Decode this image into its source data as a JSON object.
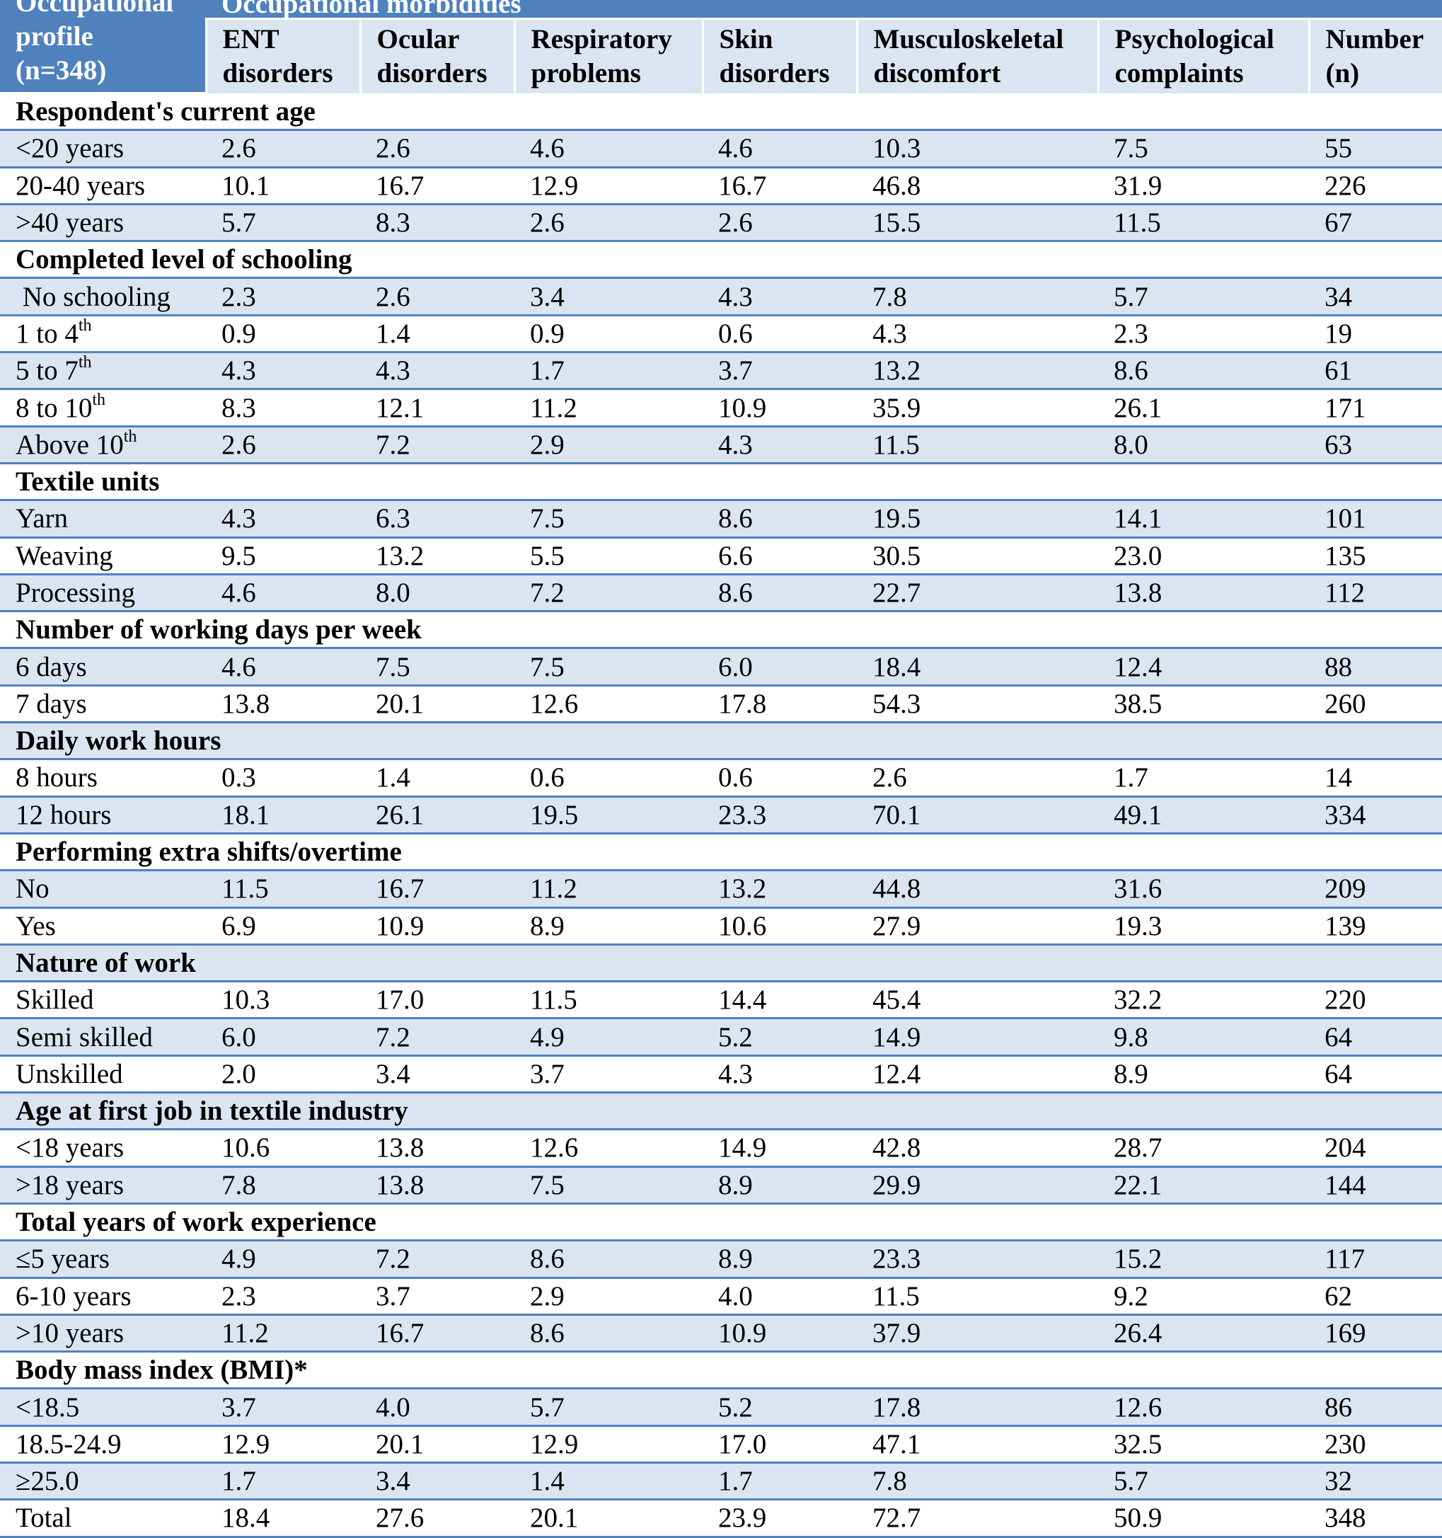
{
  "header": {
    "profile_lines": [
      "Occupational",
      "profile",
      "(n=348)"
    ],
    "group_label": "Occupational morbidities",
    "columns": [
      {
        "l1": "ENT",
        "l2": "disorders"
      },
      {
        "l1": "Ocular",
        "l2": "disorders"
      },
      {
        "l1": "Respiratory",
        "l2": "problems"
      },
      {
        "l1": "Skin",
        "l2": "disorders"
      },
      {
        "l1": "Musculoskeletal",
        "l2": "discomfort"
      },
      {
        "l1": "Psychological",
        "l2": "complaints"
      },
      {
        "l1": "Number",
        "l2": "(n)"
      }
    ]
  },
  "rows": [
    {
      "type": "section",
      "label": "Respondent's current age"
    },
    {
      "type": "data",
      "label": "<20 years",
      "values": [
        "2.6",
        "2.6",
        "4.6",
        "4.6",
        "10.3",
        "7.5",
        "55"
      ]
    },
    {
      "type": "data",
      "label": "20-40 years",
      "values": [
        "10.1",
        "16.7",
        "12.9",
        "16.7",
        "46.8",
        "31.9",
        "226"
      ]
    },
    {
      "type": "data",
      "label": ">40 years",
      "values": [
        "5.7",
        "8.3",
        "2.6",
        "2.6",
        "15.5",
        "11.5",
        "67"
      ]
    },
    {
      "type": "section",
      "label": "Completed level of schooling"
    },
    {
      "type": "data",
      "label": " No schooling",
      "values": [
        "2.3",
        "2.6",
        "3.4",
        "4.3",
        "7.8",
        "5.7",
        "34"
      ]
    },
    {
      "type": "data",
      "label": "1 to 4",
      "sup": "th",
      "values": [
        "0.9",
        "1.4",
        "0.9",
        "0.6",
        "4.3",
        "2.3",
        "19"
      ]
    },
    {
      "type": "data",
      "label": "5 to 7",
      "sup": "th",
      "values": [
        "4.3",
        "4.3",
        "1.7",
        "3.7",
        "13.2",
        "8.6",
        "61"
      ]
    },
    {
      "type": "data",
      "label": "8 to 10",
      "sup": "th",
      "values": [
        "8.3",
        "12.1",
        "11.2",
        "10.9",
        "35.9",
        "26.1",
        "171"
      ]
    },
    {
      "type": "data",
      "label": "Above 10",
      "sup": "th",
      "values": [
        "2.6",
        "7.2",
        "2.9",
        "4.3",
        "11.5",
        "8.0",
        "63"
      ]
    },
    {
      "type": "section",
      "label": "Textile units"
    },
    {
      "type": "data",
      "label": "Yarn",
      "values": [
        "4.3",
        "6.3",
        "7.5",
        "8.6",
        "19.5",
        "14.1",
        "101"
      ]
    },
    {
      "type": "data",
      "label": "Weaving",
      "values": [
        "9.5",
        "13.2",
        "5.5",
        "6.6",
        "30.5",
        "23.0",
        "135"
      ]
    },
    {
      "type": "data",
      "label": "Processing",
      "values": [
        "4.6",
        "8.0",
        "7.2",
        "8.6",
        "22.7",
        "13.8",
        "112"
      ]
    },
    {
      "type": "section",
      "label": "Number of working days per week"
    },
    {
      "type": "data",
      "label": "6 days",
      "values": [
        "4.6",
        "7.5",
        "7.5",
        "6.0",
        "18.4",
        "12.4",
        "88"
      ]
    },
    {
      "type": "data",
      "label": "7 days",
      "values": [
        "13.8",
        "20.1",
        "12.6",
        "17.8",
        "54.3",
        "38.5",
        "260"
      ]
    },
    {
      "type": "section",
      "label": "Daily work hours"
    },
    {
      "type": "data",
      "label": "8 hours",
      "values": [
        "0.3",
        "1.4",
        "0.6",
        "0.6",
        "2.6",
        "1.7",
        "14"
      ]
    },
    {
      "type": "data",
      "label": "12 hours",
      "values": [
        "18.1",
        "26.1",
        "19.5",
        "23.3",
        "70.1",
        "49.1",
        "334"
      ]
    },
    {
      "type": "section",
      "label": "Performing extra shifts/overtime"
    },
    {
      "type": "data",
      "label": "No",
      "values": [
        "11.5",
        "16.7",
        "11.2",
        "13.2",
        "44.8",
        "31.6",
        "209"
      ]
    },
    {
      "type": "data",
      "label": "Yes",
      "values": [
        "6.9",
        "10.9",
        "8.9",
        "10.6",
        "27.9",
        "19.3",
        "139"
      ]
    },
    {
      "type": "section",
      "label": "Nature of work"
    },
    {
      "type": "data",
      "label": "Skilled",
      "values": [
        "10.3",
        "17.0",
        "11.5",
        "14.4",
        "45.4",
        "32.2",
        "220"
      ]
    },
    {
      "type": "data",
      "label": "Semi skilled",
      "values": [
        "6.0",
        "7.2",
        "4.9",
        "5.2",
        "14.9",
        "9.8",
        "64"
      ]
    },
    {
      "type": "data",
      "label": "Unskilled",
      "values": [
        "2.0",
        "3.4",
        "3.7",
        "4.3",
        "12.4",
        "8.9",
        "64"
      ]
    },
    {
      "type": "section",
      "label": "Age at first job in textile industry"
    },
    {
      "type": "data",
      "label": "<18 years",
      "values": [
        "10.6",
        "13.8",
        "12.6",
        "14.9",
        "42.8",
        "28.7",
        "204"
      ]
    },
    {
      "type": "data",
      "label": ">18 years",
      "values": [
        "7.8",
        "13.8",
        "7.5",
        "8.9",
        "29.9",
        "22.1",
        "144"
      ]
    },
    {
      "type": "section",
      "label": "Total years of work experience"
    },
    {
      "type": "data",
      "label": "≤5 years",
      "values": [
        "4.9",
        "7.2",
        "8.6",
        "8.9",
        "23.3",
        "15.2",
        "117"
      ]
    },
    {
      "type": "data",
      "label": "6-10 years",
      "values": [
        "2.3",
        "3.7",
        "2.9",
        "4.0",
        "11.5",
        "9.2",
        "62"
      ]
    },
    {
      "type": "data",
      "label": ">10 years",
      "values": [
        "11.2",
        "16.7",
        "8.6",
        "10.9",
        "37.9",
        "26.4",
        "169"
      ]
    },
    {
      "type": "section",
      "label": "Body mass index (BMI)*"
    },
    {
      "type": "data",
      "label": "<18.5",
      "values": [
        "3.7",
        "4.0",
        "5.7",
        "5.2",
        "17.8",
        "12.6",
        "86"
      ]
    },
    {
      "type": "data",
      "label": "18.5-24.9",
      "values": [
        "12.9",
        "20.1",
        "12.9",
        "17.0",
        "47.1",
        "32.5",
        "230"
      ]
    },
    {
      "type": "data",
      "label": "≥25.0",
      "values": [
        "1.7",
        "3.4",
        "1.4",
        "1.7",
        "7.8",
        "5.7",
        "32"
      ]
    },
    {
      "type": "data",
      "label": "Total",
      "values": [
        "18.4",
        "27.6",
        "20.1",
        "23.9",
        "72.7",
        "50.9",
        "348"
      ]
    }
  ],
  "colors": {
    "header_blue": "#4f81bd",
    "band_light": "#dbe5f1"
  }
}
